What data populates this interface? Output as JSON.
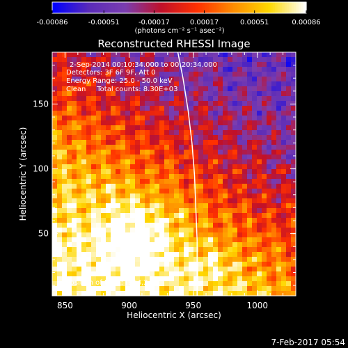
{
  "colorbar": {
    "tick_labels": [
      "-0.00086",
      "-0.00051",
      "-0.00017",
      "0.00017",
      "0.00051",
      "0.00086"
    ],
    "tick_values": [
      -0.00086,
      -0.00051,
      -0.00017,
      0.00017,
      0.00051,
      0.00086
    ],
    "min": -0.00086,
    "max": 0.00086,
    "unit_label": "(photons cm⁻² s⁻¹ asec⁻²)",
    "colors": [
      "#0000ff",
      "#5a2bb8",
      "#7a3db0",
      "#c0102a",
      "#ff3000",
      "#ff8c00",
      "#ffd800",
      "#ffffff"
    ]
  },
  "chart_data": {
    "type": "heatmap",
    "title": "Reconstructed RHESSI Image",
    "xlabel": "Heliocentric X (arcsec)",
    "ylabel": "Heliocentric Y (arcsec)",
    "xlim": [
      840,
      1030
    ],
    "ylim": [
      2,
      190
    ],
    "x_ticks": [
      850,
      900,
      950,
      1000
    ],
    "y_ticks": [
      50,
      100,
      150
    ],
    "limb_curve": {
      "color": "#ffffff",
      "points": [
        [
          938,
          190
        ],
        [
          942,
          170
        ],
        [
          946,
          145
        ],
        [
          949,
          120
        ],
        [
          951,
          95
        ],
        [
          952,
          70
        ],
        [
          953,
          45
        ],
        [
          953,
          20
        ],
        [
          953,
          2
        ]
      ]
    },
    "annotations": {
      "time_range": "2-Sep-2014 00:10:34.000 to 00:20:34.000",
      "detectors": "Detectors: 3F 6F 9F, Att 0",
      "energy_range": "Energy Range: 25.0 - 50.0 keV",
      "method_counts": "Clean     Total counts: 8.30E+03",
      "peak_position": "Position of Peak: [964,24]"
    }
  },
  "footer": {
    "date": "7-Feb-2017 05:54"
  }
}
